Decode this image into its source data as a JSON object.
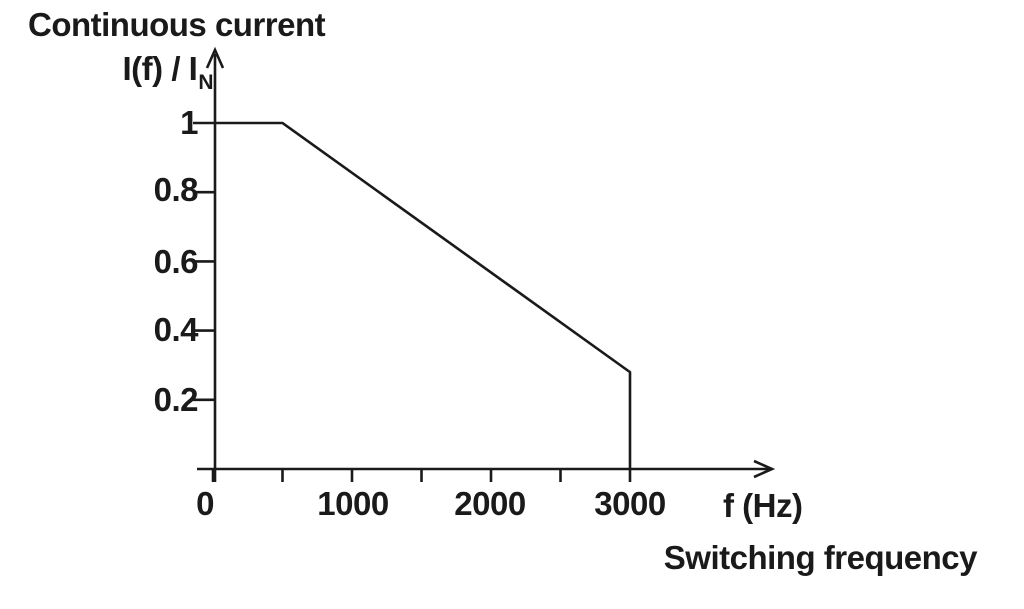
{
  "title": "Continuous current",
  "y_axis": {
    "label_main": "I(f) / I",
    "label_sub": "N"
  },
  "x_axis": {
    "unit_label": "f (Hz)",
    "name_label": "Switching frequency"
  },
  "chart_data": {
    "type": "line",
    "title": "Continuous current",
    "ylabel": "I(f) / I_N",
    "xlabel": "Switching frequency",
    "x_unit": "f (Hz)",
    "points": [
      {
        "f_hz": 0,
        "ratio": 1.0
      },
      {
        "f_hz": 500,
        "ratio": 1.0
      },
      {
        "f_hz": 3000,
        "ratio": 0.28
      },
      {
        "f_hz": 3000,
        "ratio": 0.0
      }
    ],
    "description": "Derating curve: current ratio constant at 1.0 up to 500 Hz, linear decline to 0.28 at 3000 Hz, then vertical drop to 0 at 3000 Hz",
    "y_ticks": [
      0.2,
      0.4,
      0.6,
      0.8,
      1
    ],
    "y_tick_labels": [
      "1",
      "0.8",
      "0.6",
      "0.4",
      "0.2"
    ],
    "x_ticks_all": [
      0,
      500,
      1000,
      1500,
      2000,
      2500,
      3000
    ],
    "x_ticks_labeled": [
      0,
      1000,
      2000,
      3000
    ],
    "x_tick_labels": [
      "0",
      "1000",
      "2000",
      "3000"
    ],
    "xlim": [
      0,
      4000
    ],
    "ylim": [
      0,
      1.2
    ],
    "grid": false,
    "legend": null,
    "line_color": "#1a1a1a",
    "background_color": "#ffffff"
  }
}
